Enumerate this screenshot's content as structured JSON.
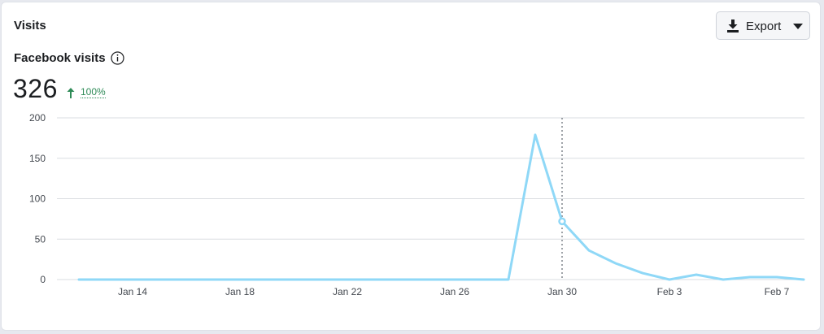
{
  "card": {
    "title": "Visits"
  },
  "export": {
    "label": "Export",
    "icon": "download-icon",
    "caret_icon": "caret-down-icon"
  },
  "metric": {
    "label": "Facebook visits",
    "info_icon": "info-icon",
    "value": "326",
    "change": "100%",
    "change_direction": "up",
    "change_color": "#2e8b57"
  },
  "chart_data": {
    "type": "line",
    "x": [
      "Jan 12",
      "Jan 13",
      "Jan 14",
      "Jan 15",
      "Jan 16",
      "Jan 17",
      "Jan 18",
      "Jan 19",
      "Jan 20",
      "Jan 21",
      "Jan 22",
      "Jan 23",
      "Jan 24",
      "Jan 25",
      "Jan 26",
      "Jan 27",
      "Jan 28",
      "Jan 29",
      "Jan 30",
      "Jan 31",
      "Feb 1",
      "Feb 2",
      "Feb 3",
      "Feb 4",
      "Feb 5",
      "Feb 6",
      "Feb 7",
      "Feb 8"
    ],
    "series": [
      {
        "values": [
          0,
          0,
          0,
          0,
          0,
          0,
          0,
          0,
          0,
          0,
          0,
          0,
          0,
          0,
          0,
          0,
          0,
          179,
          72,
          36,
          20,
          8,
          0,
          6,
          0,
          3,
          3,
          0
        ],
        "color": "#8fd8f7"
      }
    ],
    "xticks": [
      "Jan 14",
      "Jan 18",
      "Jan 22",
      "Jan 26",
      "Jan 30",
      "Feb 3",
      "Feb 7"
    ],
    "yticks": [
      0,
      50,
      100,
      150,
      200
    ],
    "ylim": [
      0,
      200
    ],
    "grid": true,
    "hover_x": "Jan 30"
  }
}
